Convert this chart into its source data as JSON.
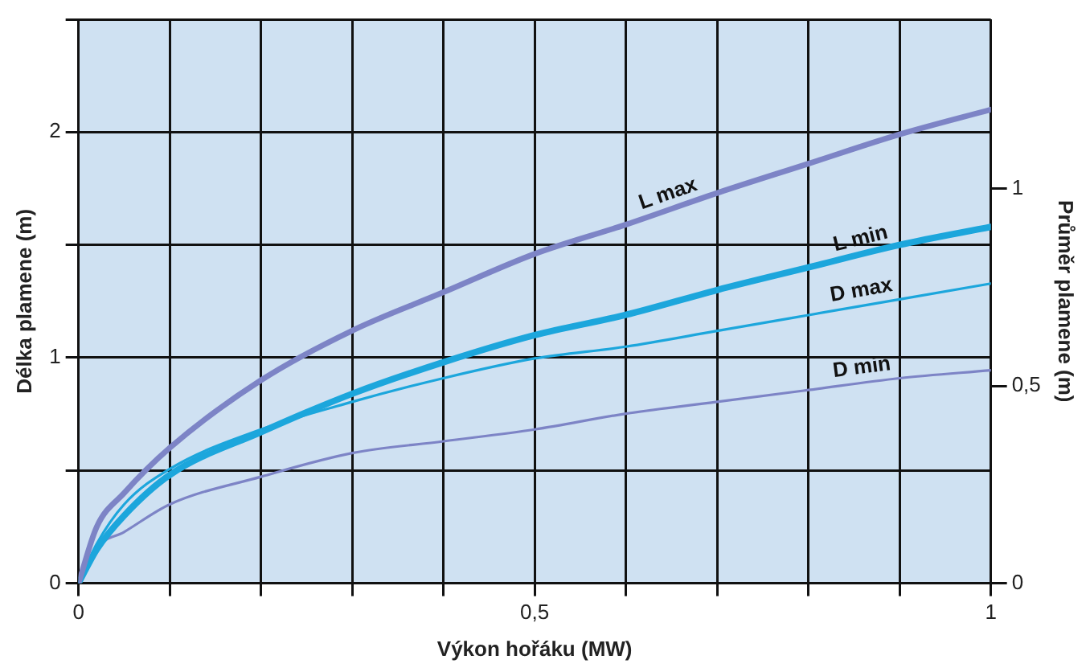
{
  "chart_data": {
    "type": "line",
    "xlabel": "Výkon hořáku (MW)",
    "ylabel": "Délka plamene (m)",
    "y2label": "Průměr plamene (m)",
    "x": [
      0,
      0.02,
      0.05,
      0.1,
      0.2,
      0.3,
      0.4,
      0.5,
      0.6,
      0.7,
      0.8,
      0.9,
      1.0
    ],
    "series": [
      {
        "name": "L max",
        "color": "#7d84c6",
        "values": [
          0,
          0.25,
          0.4,
          0.6,
          0.9,
          1.12,
          1.29,
          1.46,
          1.59,
          1.73,
          1.86,
          1.99,
          2.1
        ]
      },
      {
        "name": "L min",
        "color": "#1ca6dc",
        "values": [
          0,
          0.15,
          0.3,
          0.48,
          0.67,
          0.84,
          0.98,
          1.1,
          1.19,
          1.3,
          1.4,
          1.5,
          1.58
        ]
      },
      {
        "name": "D max",
        "color": "#1ca6dc",
        "axis": "y2",
        "values": [
          0,
          0.1,
          0.2,
          0.29,
          0.39,
          0.46,
          0.52,
          0.57,
          0.6,
          0.64,
          0.68,
          0.72,
          0.76
        ]
      },
      {
        "name": "D min",
        "color": "#7d84c6",
        "axis": "y2",
        "values": [
          0,
          0.09,
          0.13,
          0.2,
          0.27,
          0.33,
          0.36,
          0.39,
          0.43,
          0.46,
          0.49,
          0.52,
          0.54
        ]
      }
    ],
    "xlim": [
      0,
      1
    ],
    "xticks": [
      0,
      {
        "value": 0.1,
        "label": null
      },
      {
        "value": 0.2,
        "label": null
      },
      {
        "value": 0.3,
        "label": null
      },
      {
        "value": 0.4,
        "label": null
      },
      {
        "value": 0.5,
        "label": "0,5"
      },
      {
        "value": 0.6,
        "label": null
      },
      {
        "value": 0.7,
        "label": null
      },
      {
        "value": 0.8,
        "label": null
      },
      {
        "value": 0.9,
        "label": null
      },
      1
    ],
    "ylim": [
      0,
      2.5
    ],
    "yticks": [
      0,
      {
        "value": 0.5,
        "label": null
      },
      1,
      {
        "value": 1.5,
        "label": null
      },
      2,
      {
        "value": 2.5,
        "label": null
      }
    ],
    "y2lim": [
      0,
      1.43
    ],
    "y2ticks": [
      0,
      {
        "value": 0.5,
        "label": "0,5"
      },
      1
    ],
    "grid": true,
    "legend": false,
    "marker": "none",
    "line_style": "solid"
  }
}
